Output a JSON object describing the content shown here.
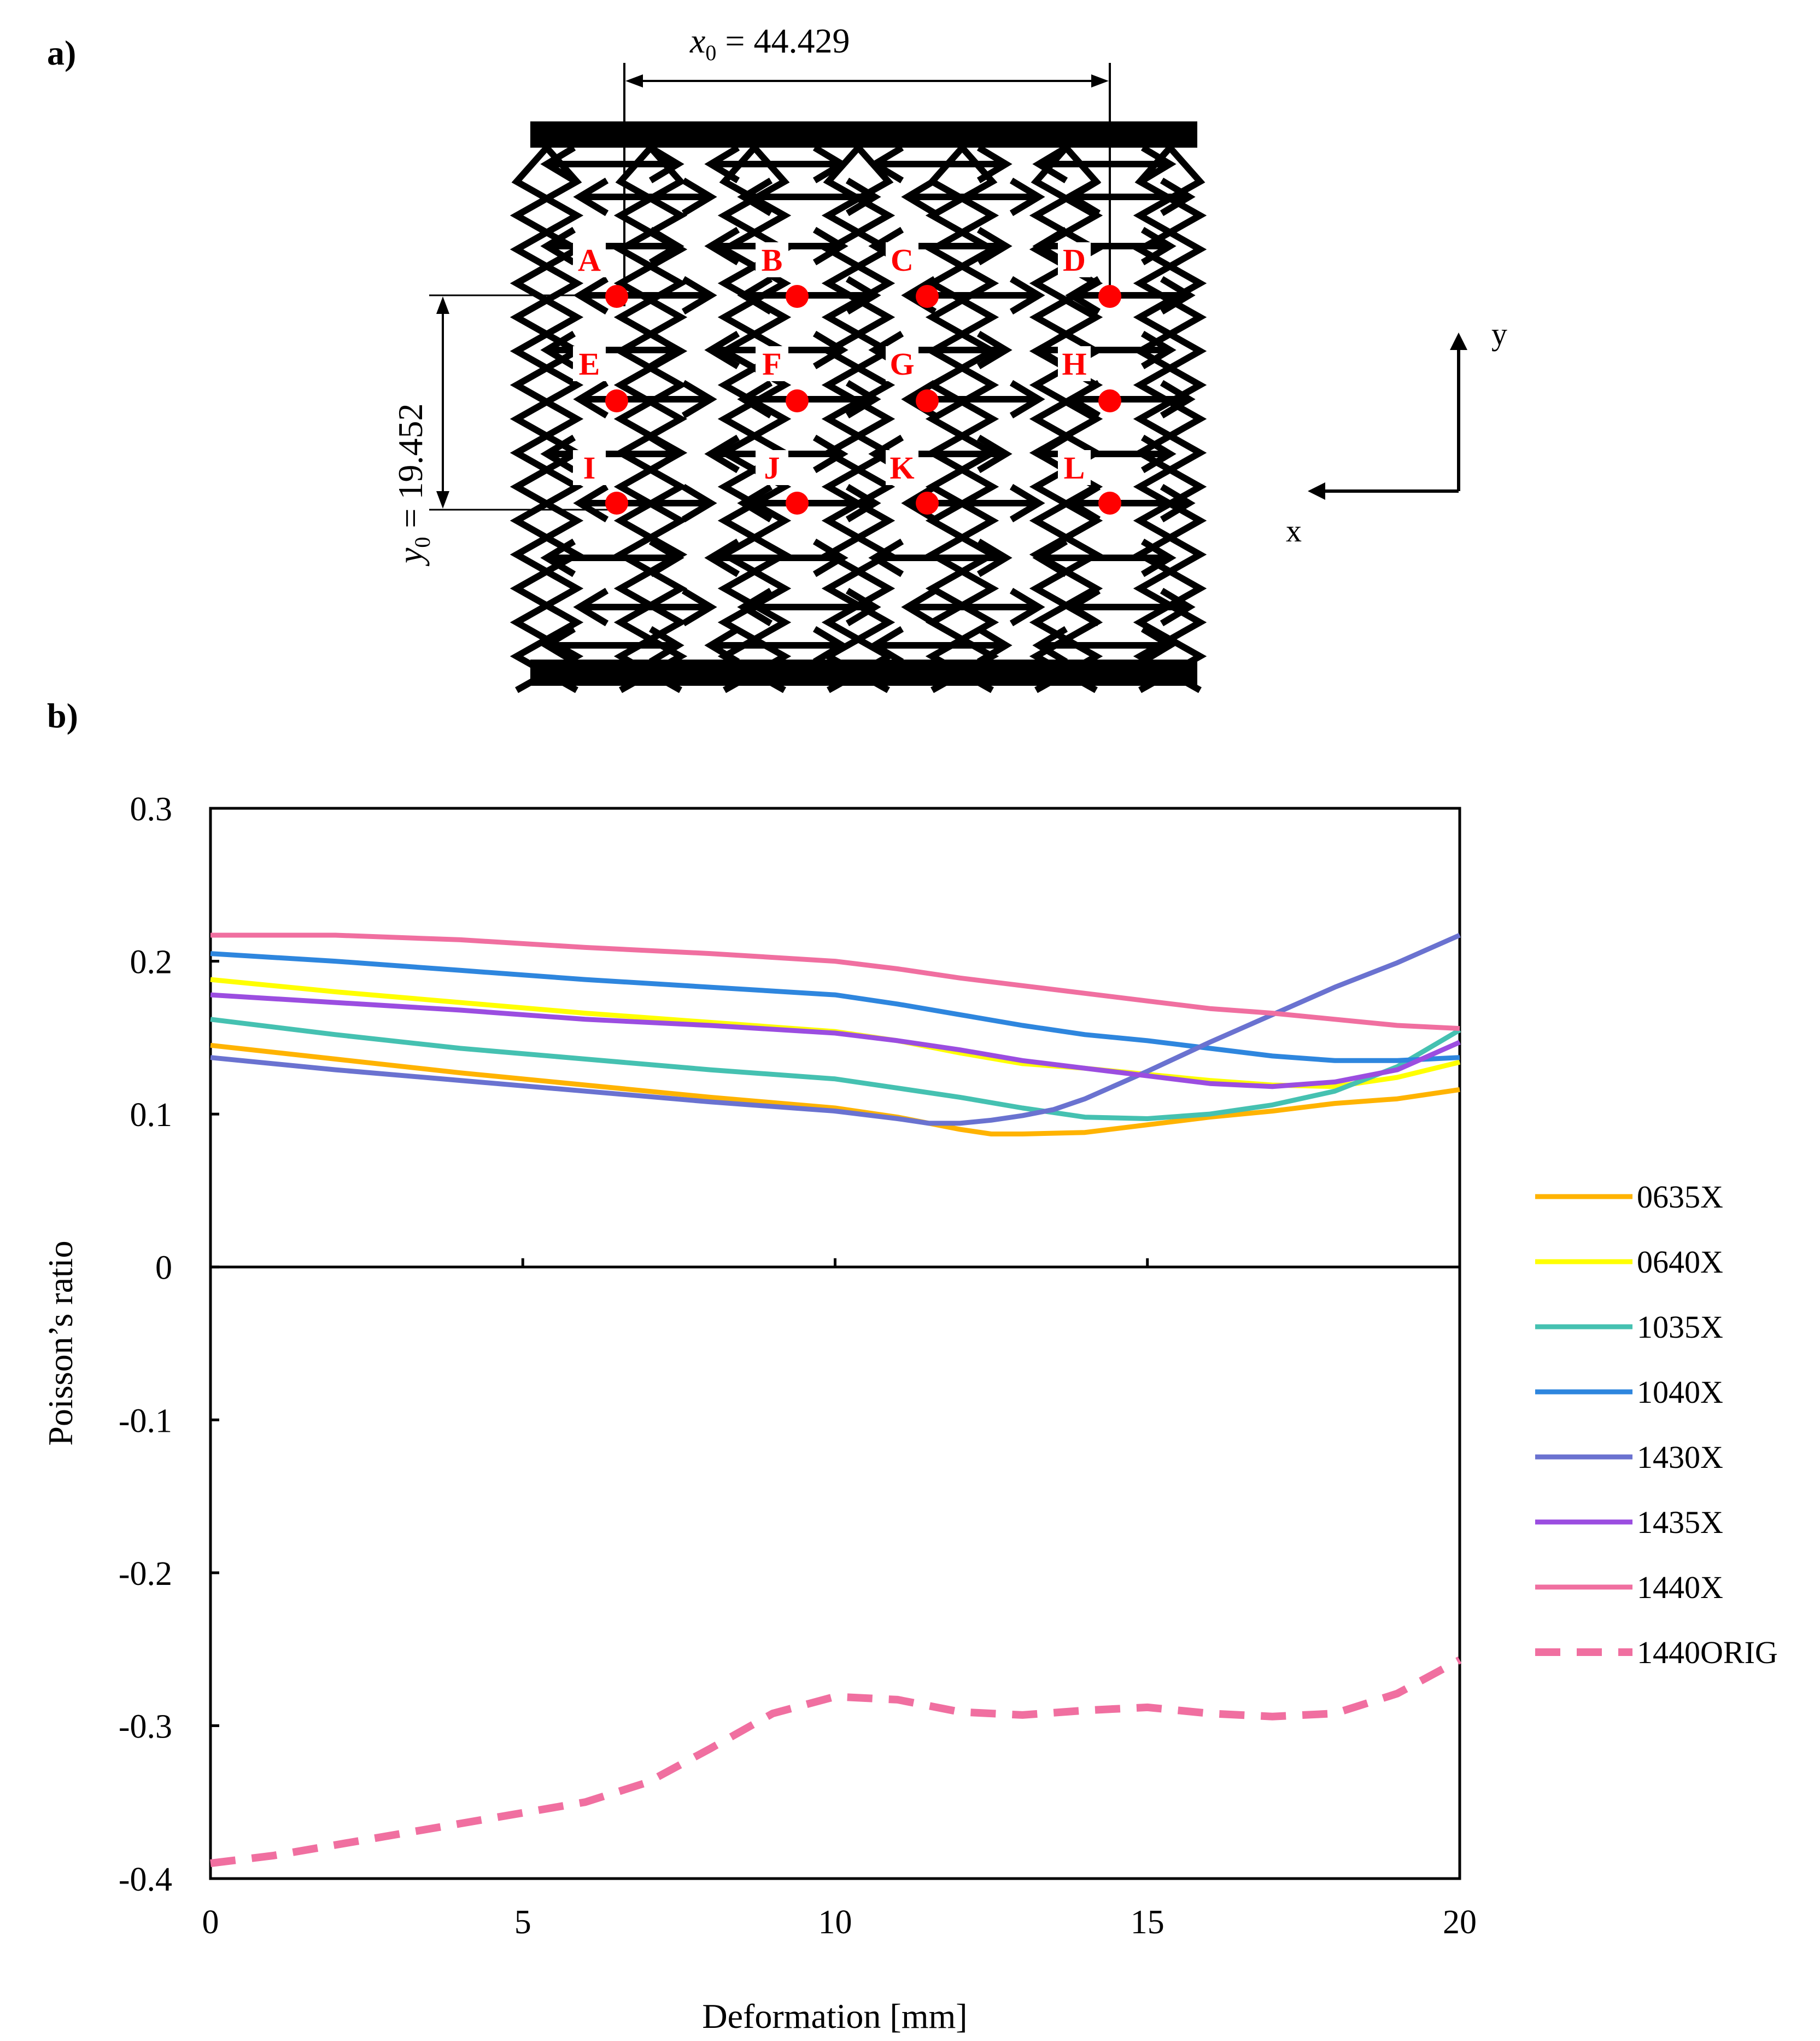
{
  "panel_a": {
    "label": "a)",
    "x0_symbol": "x",
    "x0_subscript": "0",
    "x0_text": " = 44.429",
    "y0_symbol": "y",
    "y0_subscript": "0",
    "y0_text": " = 19.452",
    "points": [
      "A",
      "B",
      "C",
      "D",
      "E",
      "F",
      "G",
      "H",
      "I",
      "J",
      "K",
      "L"
    ],
    "point_color": "#ff0000",
    "axis_x_label": "x",
    "axis_y_label": "y"
  },
  "panel_b": {
    "label": "b)"
  },
  "chart_data": {
    "type": "line",
    "title": "",
    "xlabel": "Deformation [mm]",
    "ylabel": "Poisson’s ratio",
    "xlim": [
      0,
      20
    ],
    "ylim": [
      -0.4,
      0.3
    ],
    "xticks": [
      0,
      5,
      10,
      15,
      20
    ],
    "yticks": [
      0.3,
      0.2,
      0.1,
      0,
      -0.1,
      -0.2,
      -0.3,
      -0.4
    ],
    "ytick_labels": [
      "0.3",
      "0.2",
      "0.1",
      "0",
      "-0.1",
      "-0.2",
      "-0.3",
      "-0.4"
    ],
    "grid": false,
    "legend_position": "right",
    "series": [
      {
        "name": "0635X",
        "color": "#ffb300",
        "dashed": false,
        "x": [
          0,
          2,
          4,
          6,
          8,
          10,
          11,
          12,
          12.5,
          13,
          14,
          15,
          16,
          17,
          18,
          19,
          20
        ],
        "y": [
          0.145,
          0.136,
          0.127,
          0.119,
          0.111,
          0.104,
          0.098,
          0.09,
          0.087,
          0.087,
          0.088,
          0.093,
          0.098,
          0.102,
          0.107,
          0.11,
          0.116
        ]
      },
      {
        "name": "0640X",
        "color": "#ffff00",
        "dashed": false,
        "x": [
          0,
          2,
          4,
          6,
          8,
          10,
          11,
          12,
          13,
          14,
          15,
          16,
          17,
          18,
          19,
          20
        ],
        "y": [
          0.188,
          0.18,
          0.173,
          0.166,
          0.16,
          0.154,
          0.148,
          0.14,
          0.133,
          0.13,
          0.126,
          0.122,
          0.119,
          0.118,
          0.124,
          0.134
        ]
      },
      {
        "name": "1035X",
        "color": "#45c1b1",
        "dashed": false,
        "x": [
          0,
          2,
          4,
          6,
          8,
          10,
          11,
          12,
          13,
          14,
          15,
          16,
          17,
          18,
          19,
          20
        ],
        "y": [
          0.162,
          0.152,
          0.143,
          0.136,
          0.129,
          0.123,
          0.117,
          0.111,
          0.104,
          0.098,
          0.097,
          0.1,
          0.106,
          0.115,
          0.131,
          0.155
        ]
      },
      {
        "name": "1040X",
        "color": "#2e86de",
        "dashed": false,
        "x": [
          0,
          2,
          4,
          6,
          8,
          10,
          11,
          12,
          13,
          14,
          15,
          16,
          17,
          18,
          19,
          20
        ],
        "y": [
          0.205,
          0.2,
          0.194,
          0.188,
          0.183,
          0.178,
          0.172,
          0.165,
          0.158,
          0.152,
          0.148,
          0.143,
          0.138,
          0.135,
          0.135,
          0.137
        ]
      },
      {
        "name": "1430X",
        "color": "#6a72d0",
        "dashed": false,
        "x": [
          0,
          2,
          4,
          6,
          8,
          10,
          11,
          11.5,
          12,
          12.5,
          13,
          13.5,
          14,
          15,
          16,
          17,
          18,
          19,
          20
        ],
        "y": [
          0.137,
          0.129,
          0.122,
          0.115,
          0.108,
          0.102,
          0.097,
          0.094,
          0.094,
          0.096,
          0.099,
          0.103,
          0.11,
          0.128,
          0.147,
          0.165,
          0.183,
          0.199,
          0.217
        ]
      },
      {
        "name": "1435X",
        "color": "#9b4de0",
        "dashed": false,
        "x": [
          0,
          2,
          4,
          6,
          8,
          10,
          11,
          12,
          13,
          14,
          15,
          16,
          17,
          18,
          19,
          20
        ],
        "y": [
          0.178,
          0.173,
          0.168,
          0.162,
          0.158,
          0.153,
          0.148,
          0.142,
          0.135,
          0.13,
          0.125,
          0.12,
          0.118,
          0.121,
          0.129,
          0.147
        ]
      },
      {
        "name": "1440X",
        "color": "#f06fa0",
        "dashed": false,
        "x": [
          0,
          2,
          4,
          6,
          8,
          10,
          11,
          12,
          13,
          14,
          15,
          16,
          17,
          18,
          19,
          20
        ],
        "y": [
          0.217,
          0.217,
          0.214,
          0.209,
          0.205,
          0.2,
          0.195,
          0.189,
          0.184,
          0.179,
          0.174,
          0.169,
          0.166,
          0.162,
          0.158,
          0.156
        ]
      },
      {
        "name": "1440ORIG",
        "color": "#f06fa0",
        "dashed": true,
        "x": [
          0,
          1,
          2,
          3,
          4,
          5,
          6,
          7,
          8,
          9,
          10,
          11,
          12,
          13,
          14,
          15,
          16,
          17,
          18,
          19,
          20
        ],
        "y": [
          -0.39,
          -0.385,
          -0.378,
          -0.371,
          -0.364,
          -0.357,
          -0.35,
          -0.337,
          -0.315,
          -0.292,
          -0.281,
          -0.283,
          -0.291,
          -0.293,
          -0.29,
          -0.288,
          -0.292,
          -0.294,
          -0.292,
          -0.279,
          -0.257
        ]
      }
    ]
  }
}
